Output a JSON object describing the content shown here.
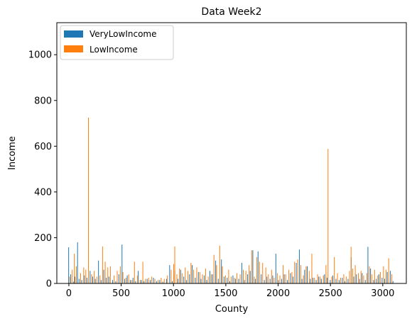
{
  "chart_data": {
    "type": "bar",
    "title": "Data Week2",
    "xlabel": "County",
    "ylabel": "Income",
    "xlim": [
      -115,
      3225
    ],
    "ylim": [
      0,
      1140
    ],
    "x_ticks": [
      0,
      500,
      1000,
      1500,
      2000,
      2500,
      3000
    ],
    "y_ticks": [
      0,
      200,
      400,
      600,
      800,
      1000
    ],
    "x_tick_labels": [
      "0",
      "500",
      "1000",
      "1500",
      "2000",
      "2500",
      "3000"
    ],
    "y_tick_labels": [
      "0",
      "200",
      "400",
      "600",
      "800",
      "1000"
    ],
    "grid": false,
    "legend_position": "top-left",
    "bar_width": 4,
    "series": [
      {
        "name": "VeryLowIncome",
        "color": "#1f77b4",
        "offset": -2,
        "points": [
          [
            0,
            158
          ],
          [
            20,
            40
          ],
          [
            48,
            8
          ],
          [
            60,
            30
          ],
          [
            85,
            180
          ],
          [
            100,
            20
          ],
          [
            125,
            15
          ],
          [
            150,
            35
          ],
          [
            175,
            25
          ],
          [
            205,
            55
          ],
          [
            230,
            30
          ],
          [
            255,
            20
          ],
          [
            285,
            100
          ],
          [
            310,
            15
          ],
          [
            335,
            60
          ],
          [
            360,
            25
          ],
          [
            385,
            30
          ],
          [
            420,
            15
          ],
          [
            450,
            10
          ],
          [
            480,
            40
          ],
          [
            510,
            170
          ],
          [
            535,
            20
          ],
          [
            560,
            35
          ],
          [
            590,
            15
          ],
          [
            615,
            25
          ],
          [
            640,
            10
          ],
          [
            665,
            55
          ],
          [
            695,
            15
          ],
          [
            720,
            10
          ],
          [
            750,
            20
          ],
          [
            780,
            15
          ],
          [
            810,
            25
          ],
          [
            840,
            10
          ],
          [
            870,
            15
          ],
          [
            900,
            8
          ],
          [
            935,
            20
          ],
          [
            965,
            80
          ],
          [
            990,
            10
          ],
          [
            1015,
            55
          ],
          [
            1045,
            20
          ],
          [
            1070,
            60
          ],
          [
            1100,
            30
          ],
          [
            1125,
            15
          ],
          [
            1155,
            40
          ],
          [
            1180,
            80
          ],
          [
            1210,
            25
          ],
          [
            1240,
            50
          ],
          [
            1265,
            20
          ],
          [
            1295,
            35
          ],
          [
            1320,
            15
          ],
          [
            1350,
            55
          ],
          [
            1375,
            40
          ],
          [
            1405,
            100
          ],
          [
            1430,
            20
          ],
          [
            1460,
            105
          ],
          [
            1485,
            30
          ],
          [
            1515,
            25
          ],
          [
            1540,
            10
          ],
          [
            1570,
            35
          ],
          [
            1595,
            20
          ],
          [
            1625,
            20
          ],
          [
            1655,
            90
          ],
          [
            1680,
            15
          ],
          [
            1710,
            40
          ],
          [
            1735,
            55
          ],
          [
            1760,
            145
          ],
          [
            1785,
            20
          ],
          [
            1810,
            140
          ],
          [
            1840,
            40
          ],
          [
            1870,
            15
          ],
          [
            1895,
            30
          ],
          [
            1925,
            20
          ],
          [
            1950,
            35
          ],
          [
            1980,
            130
          ],
          [
            2005,
            15
          ],
          [
            2035,
            20
          ],
          [
            2060,
            40
          ],
          [
            2090,
            15
          ],
          [
            2120,
            45
          ],
          [
            2145,
            30
          ],
          [
            2175,
            90
          ],
          [
            2205,
            148
          ],
          [
            2230,
            20
          ],
          [
            2255,
            60
          ],
          [
            2280,
            75
          ],
          [
            2310,
            20
          ],
          [
            2335,
            25
          ],
          [
            2365,
            15
          ],
          [
            2390,
            30
          ],
          [
            2415,
            20
          ],
          [
            2445,
            40
          ],
          [
            2470,
            25
          ],
          [
            2500,
            15
          ],
          [
            2525,
            35
          ],
          [
            2555,
            20
          ],
          [
            2585,
            15
          ],
          [
            2615,
            25
          ],
          [
            2640,
            10
          ],
          [
            2670,
            20
          ],
          [
            2700,
            115
          ],
          [
            2725,
            30
          ],
          [
            2750,
            40
          ],
          [
            2780,
            20
          ],
          [
            2805,
            45
          ],
          [
            2835,
            15
          ],
          [
            2860,
            160
          ],
          [
            2885,
            65
          ],
          [
            2915,
            15
          ],
          [
            2940,
            20
          ],
          [
            2965,
            40
          ],
          [
            2995,
            25
          ],
          [
            3020,
            20
          ],
          [
            3045,
            50
          ],
          [
            3075,
            55
          ],
          [
            3100,
            10
          ]
        ]
      },
      {
        "name": "LowIncome",
        "color": "#ff7f0e",
        "offset": 2,
        "points": [
          [
            5,
            30
          ],
          [
            30,
            60
          ],
          [
            50,
            130
          ],
          [
            70,
            75
          ],
          [
            110,
            45
          ],
          [
            140,
            70
          ],
          [
            160,
            60
          ],
          [
            185,
            725
          ],
          [
            215,
            40
          ],
          [
            240,
            55
          ],
          [
            265,
            30
          ],
          [
            295,
            35
          ],
          [
            320,
            162
          ],
          [
            345,
            95
          ],
          [
            370,
            70
          ],
          [
            395,
            75
          ],
          [
            430,
            35
          ],
          [
            460,
            55
          ],
          [
            490,
            75
          ],
          [
            515,
            50
          ],
          [
            545,
            25
          ],
          [
            570,
            40
          ],
          [
            600,
            15
          ],
          [
            625,
            95
          ],
          [
            655,
            35
          ],
          [
            680,
            15
          ],
          [
            705,
            95
          ],
          [
            730,
            20
          ],
          [
            760,
            25
          ],
          [
            790,
            30
          ],
          [
            820,
            20
          ],
          [
            850,
            15
          ],
          [
            880,
            25
          ],
          [
            910,
            20
          ],
          [
            940,
            35
          ],
          [
            975,
            60
          ],
          [
            1000,
            85
          ],
          [
            1010,
            162
          ],
          [
            1030,
            40
          ],
          [
            1055,
            65
          ],
          [
            1080,
            45
          ],
          [
            1110,
            70
          ],
          [
            1135,
            55
          ],
          [
            1165,
            90
          ],
          [
            1190,
            60
          ],
          [
            1220,
            70
          ],
          [
            1250,
            50
          ],
          [
            1275,
            40
          ],
          [
            1305,
            65
          ],
          [
            1330,
            30
          ],
          [
            1360,
            40
          ],
          [
            1385,
            125
          ],
          [
            1410,
            80
          ],
          [
            1440,
            165
          ],
          [
            1465,
            75
          ],
          [
            1495,
            35
          ],
          [
            1525,
            60
          ],
          [
            1550,
            30
          ],
          [
            1580,
            25
          ],
          [
            1605,
            45
          ],
          [
            1635,
            40
          ],
          [
            1665,
            60
          ],
          [
            1690,
            55
          ],
          [
            1720,
            80
          ],
          [
            1745,
            145
          ],
          [
            1770,
            30
          ],
          [
            1795,
            115
          ],
          [
            1820,
            95
          ],
          [
            1850,
            90
          ],
          [
            1880,
            70
          ],
          [
            1905,
            40
          ],
          [
            1935,
            60
          ],
          [
            1960,
            25
          ],
          [
            1990,
            45
          ],
          [
            2015,
            35
          ],
          [
            2045,
            80
          ],
          [
            2070,
            40
          ],
          [
            2100,
            60
          ],
          [
            2130,
            50
          ],
          [
            2155,
            95
          ],
          [
            2185,
            105
          ],
          [
            2215,
            80
          ],
          [
            2240,
            35
          ],
          [
            2265,
            75
          ],
          [
            2295,
            55
          ],
          [
            2320,
            130
          ],
          [
            2345,
            25
          ],
          [
            2375,
            40
          ],
          [
            2400,
            30
          ],
          [
            2430,
            35
          ],
          [
            2455,
            80
          ],
          [
            2475,
            588
          ],
          [
            2510,
            30
          ],
          [
            2535,
            115
          ],
          [
            2565,
            45
          ],
          [
            2595,
            25
          ],
          [
            2625,
            40
          ],
          [
            2650,
            30
          ],
          [
            2680,
            55
          ],
          [
            2695,
            160
          ],
          [
            2710,
            65
          ],
          [
            2735,
            80
          ],
          [
            2765,
            45
          ],
          [
            2790,
            55
          ],
          [
            2815,
            35
          ],
          [
            2845,
            45
          ],
          [
            2870,
            75
          ],
          [
            2895,
            40
          ],
          [
            2920,
            60
          ],
          [
            2950,
            35
          ],
          [
            2975,
            50
          ],
          [
            3005,
            75
          ],
          [
            3030,
            60
          ],
          [
            3055,
            110
          ],
          [
            3085,
            40
          ]
        ]
      }
    ]
  }
}
